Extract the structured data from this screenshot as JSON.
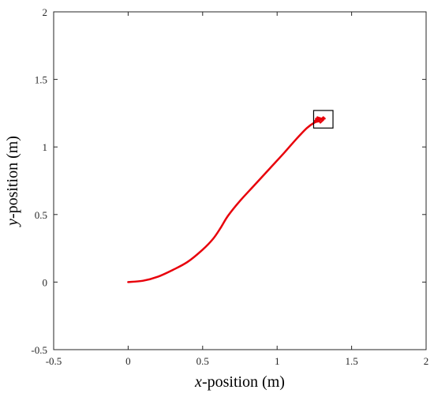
{
  "chart_data": {
    "type": "line",
    "xlabel": {
      "var": "x",
      "rest": "-position (m)"
    },
    "ylabel": {
      "var": "y",
      "rest": "-position (m)"
    },
    "xlim": [
      -0.5,
      2
    ],
    "ylim": [
      -0.5,
      2
    ],
    "xticks": [
      -0.5,
      0,
      0.5,
      1,
      1.5,
      2
    ],
    "yticks": [
      -0.5,
      0,
      0.5,
      1,
      1.5,
      2
    ],
    "xtick_labels": [
      "-0.5",
      "0",
      "0.5",
      "1",
      "1.5",
      "2"
    ],
    "ytick_labels": [
      "-0.5",
      "0",
      "0.5",
      "1",
      "1.5",
      "2"
    ],
    "grid": false,
    "series": [
      {
        "color": "#e8000b",
        "x": [
          0,
          0.1,
          0.2,
          0.3,
          0.4,
          0.5,
          0.57,
          0.62,
          0.67,
          0.75,
          0.85,
          0.95,
          1.05,
          1.13,
          1.2,
          1.25,
          1.28
        ],
        "y": [
          0,
          0.01,
          0.04,
          0.09,
          0.15,
          0.24,
          0.32,
          0.4,
          0.49,
          0.6,
          0.72,
          0.84,
          0.96,
          1.06,
          1.14,
          1.18,
          1.19
        ]
      }
    ],
    "cluster": {
      "color": "#e8000b",
      "x": [
        1.25,
        1.27,
        1.29,
        1.31,
        1.32,
        1.26,
        1.28,
        1.3,
        1.27,
        1.29,
        1.31,
        1.26
      ],
      "y": [
        1.19,
        1.21,
        1.2,
        1.22,
        1.21,
        1.2,
        1.19,
        1.21,
        1.22,
        1.18,
        1.2,
        1.21
      ]
    },
    "box": {
      "x": [
        1.245,
        1.375
      ],
      "y": [
        1.14,
        1.27
      ]
    }
  }
}
